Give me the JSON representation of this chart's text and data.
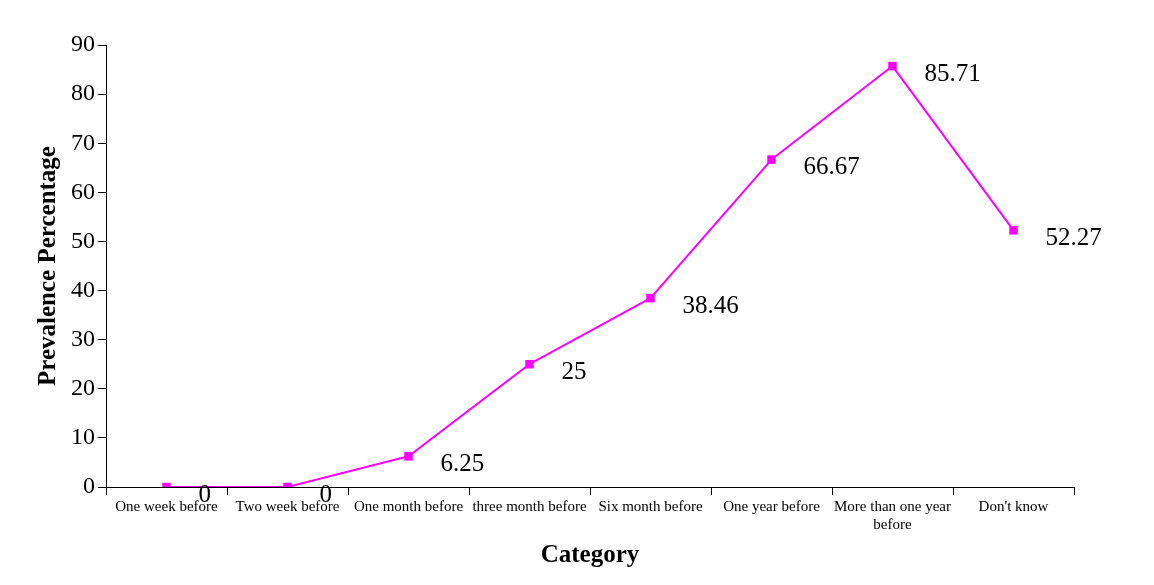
{
  "chart_data": {
    "type": "line",
    "xlabel": "Category",
    "ylabel": "Prevalence Percentage",
    "categories": [
      "One week before",
      "Two week before",
      "One month before",
      "three month before",
      "Six month before",
      "One year before",
      "More than one year before",
      "Don't know"
    ],
    "series": [
      {
        "color": "#ff00ff",
        "values": [
          0,
          0,
          6.25,
          25,
          38.46,
          66.67,
          85.71,
          52.27
        ]
      }
    ],
    "ylim": [
      0,
      90
    ],
    "yticks": [
      0,
      10,
      20,
      30,
      40,
      50,
      60,
      70,
      80,
      90
    ],
    "grid": false,
    "legend": false,
    "marker": "square",
    "line_style": "solid",
    "data_labels": true
  }
}
